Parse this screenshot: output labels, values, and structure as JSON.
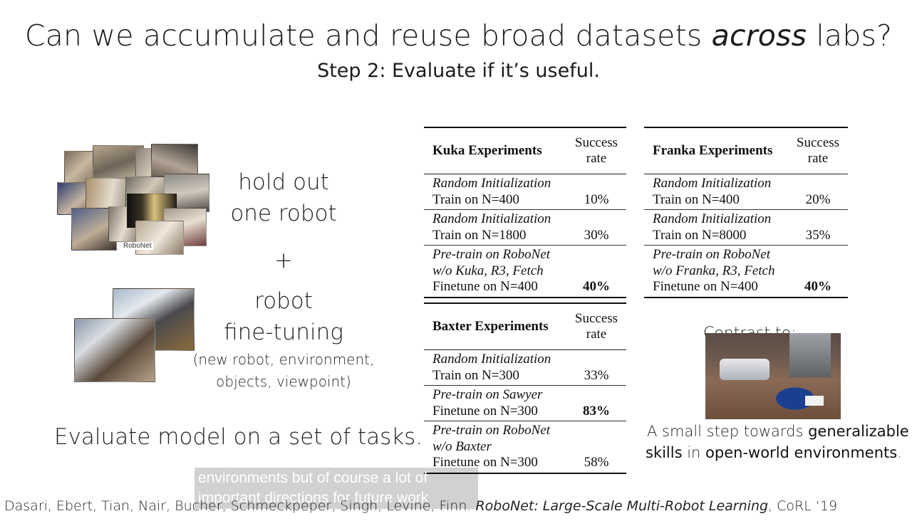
{
  "slide": {
    "title_prefix": "Can we accumulate and reuse broad datasets ",
    "title_italic": "across",
    "title_suffix": " labs?",
    "subtitle": "Step 2: Evaluate if it’s useful."
  },
  "left": {
    "robonet_label": "RoboNet",
    "hold_out_line1": "hold out",
    "hold_out_line2": "one robot",
    "plus": "+",
    "finetune_line1": "robot",
    "finetune_line2": "fine-tuning",
    "finetune_detail_line1": "(new robot, environment,",
    "finetune_detail_line2": "objects, viewpoint)",
    "evaluate": "Evaluate model on a set of tasks."
  },
  "tables": {
    "kuka": {
      "header": "Kuka Experiments",
      "col_line1": "Success",
      "col_line2": "rate",
      "rows": [
        {
          "italic1": "Random Initialization",
          "italic2": "",
          "plain": "Train on N=400",
          "value": "10%"
        },
        {
          "italic1": "Random Initialization",
          "italic2": "",
          "plain": "Train on N=1800",
          "value": "30%"
        },
        {
          "italic1": "Pre-train on RoboNet",
          "italic2": "w/o Kuka, R3, Fetch",
          "plain": "Finetune on N=400",
          "value": "40%"
        }
      ]
    },
    "franka": {
      "header": "Franka Experiments",
      "col_line1": "Success",
      "col_line2": "rate",
      "rows": [
        {
          "italic1": "Random Initialization",
          "italic2": "",
          "plain": "Train on N=400",
          "value": "20%"
        },
        {
          "italic1": "Random Initialization",
          "italic2": "",
          "plain": "Train on N=8000",
          "value": "35%"
        },
        {
          "italic1": "Pre-train on RoboNet",
          "italic2": "w/o Franka, R3, Fetch",
          "plain": "Finetune on N=400",
          "value": "40%"
        }
      ]
    },
    "baxter": {
      "header": "Baxter Experiments",
      "col_line1": "Success",
      "col_line2": "rate",
      "rows": [
        {
          "italic1": "Random Initialization",
          "italic2": "",
          "plain": "Train on N=300",
          "value": "33%"
        },
        {
          "italic1": "Pre-train on Sawyer",
          "italic2": "",
          "plain": "Finetune on N=300",
          "value": "83%"
        },
        {
          "italic1": "Pre-train on RoboNet",
          "italic2": "w/o Baxter",
          "plain": "Finetune on N=300",
          "value": "58%"
        }
      ]
    }
  },
  "right": {
    "contrast": "Contrast to:",
    "caption_pre": "A small step towards ",
    "caption_bold1": "generalizable",
    "caption_bold2": "skills",
    "caption_mid": " in ",
    "caption_bold3": "open-world environments",
    "caption_end": "."
  },
  "subtitles": {
    "line1": "environments but of course a lot of",
    "line2": "important directions for future work"
  },
  "footer": {
    "authors": "Dasari, Ebert, Tian, Nair, Bucher, Schmeckpeper, Singh, Levine, Finn. ",
    "paper": "RoboNet: Large-Scale Multi-Robot Learning",
    "venue": ", CoRL ‘19"
  }
}
